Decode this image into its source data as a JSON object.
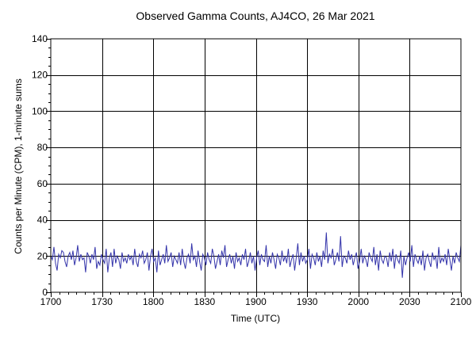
{
  "chart_data": {
    "type": "line",
    "title": "Observed Gamma Counts, AJ4CO, 26 Mar 2021",
    "xlabel": "Time (UTC)",
    "ylabel": "Counts per Minute (CPM), 1-minute sums",
    "xlim": [
      0,
      240
    ],
    "ylim": [
      0,
      140
    ],
    "x_ticks": [
      {
        "value": 0,
        "label": "1700"
      },
      {
        "value": 30,
        "label": "1730"
      },
      {
        "value": 60,
        "label": "1800"
      },
      {
        "value": 90,
        "label": "1830"
      },
      {
        "value": 120,
        "label": "1900"
      },
      {
        "value": 150,
        "label": "1930"
      },
      {
        "value": 180,
        "label": "2000"
      },
      {
        "value": 210,
        "label": "2030"
      },
      {
        "value": 240,
        "label": "2100"
      }
    ],
    "y_ticks": [
      0,
      20,
      40,
      60,
      80,
      100,
      120,
      140
    ],
    "grid": true,
    "line_color": "#3333aa",
    "series": [
      {
        "values": [
          20,
          18,
          25,
          16,
          12,
          21,
          19,
          23,
          22,
          17,
          14,
          20,
          22,
          18,
          23,
          15,
          19,
          26,
          17,
          21,
          18,
          19,
          11,
          22,
          20,
          16,
          21,
          18,
          25,
          13,
          17,
          15,
          21,
          18,
          16,
          24,
          11,
          19,
          22,
          14,
          24,
          16,
          20,
          18,
          13,
          22,
          17,
          19,
          16,
          21,
          18,
          20,
          15,
          24,
          17,
          14,
          21,
          19,
          23,
          16,
          18,
          22,
          12,
          20,
          24,
          17,
          19,
          11,
          23,
          15,
          18,
          21,
          16,
          26,
          17,
          19,
          22,
          14,
          20,
          18,
          16,
          22,
          15,
          24,
          17,
          13,
          19,
          21,
          16,
          27,
          18,
          20,
          14,
          23,
          17,
          12,
          21,
          19,
          15,
          22,
          18,
          16,
          24,
          20,
          13,
          17,
          21,
          15,
          23,
          19,
          26,
          14,
          18,
          21,
          16,
          20,
          13,
          22,
          17,
          19,
          15,
          21,
          18,
          24,
          14,
          17,
          22,
          16,
          20,
          12,
          19,
          23,
          15,
          21,
          18,
          17,
          26,
          14,
          20,
          16,
          22,
          18,
          13,
          21,
          19,
          15,
          23,
          17,
          20,
          16,
          24,
          14,
          18,
          21,
          12,
          19,
          27,
          15,
          22,
          17,
          20,
          16,
          18,
          24,
          13,
          21,
          19,
          15,
          22,
          17,
          20,
          14,
          23,
          18,
          33,
          16,
          21,
          19,
          24,
          15,
          18,
          22,
          17,
          31,
          14,
          20,
          19,
          16,
          23,
          18,
          21,
          15,
          19,
          22,
          13,
          17,
          24,
          16,
          20,
          18,
          14,
          22,
          19,
          17,
          25,
          15,
          21,
          12,
          23,
          18,
          16,
          20,
          19,
          14,
          22,
          17,
          24,
          13,
          21,
          18,
          16,
          23,
          8,
          20,
          15,
          19,
          22,
          17,
          26,
          14,
          21,
          18,
          16,
          20,
          15,
          23,
          12,
          19,
          21,
          17,
          14,
          22,
          18,
          20,
          13,
          25,
          16,
          19,
          17,
          21,
          15,
          24,
          18,
          12,
          20,
          16,
          22,
          19,
          17,
          26
        ]
      }
    ]
  }
}
